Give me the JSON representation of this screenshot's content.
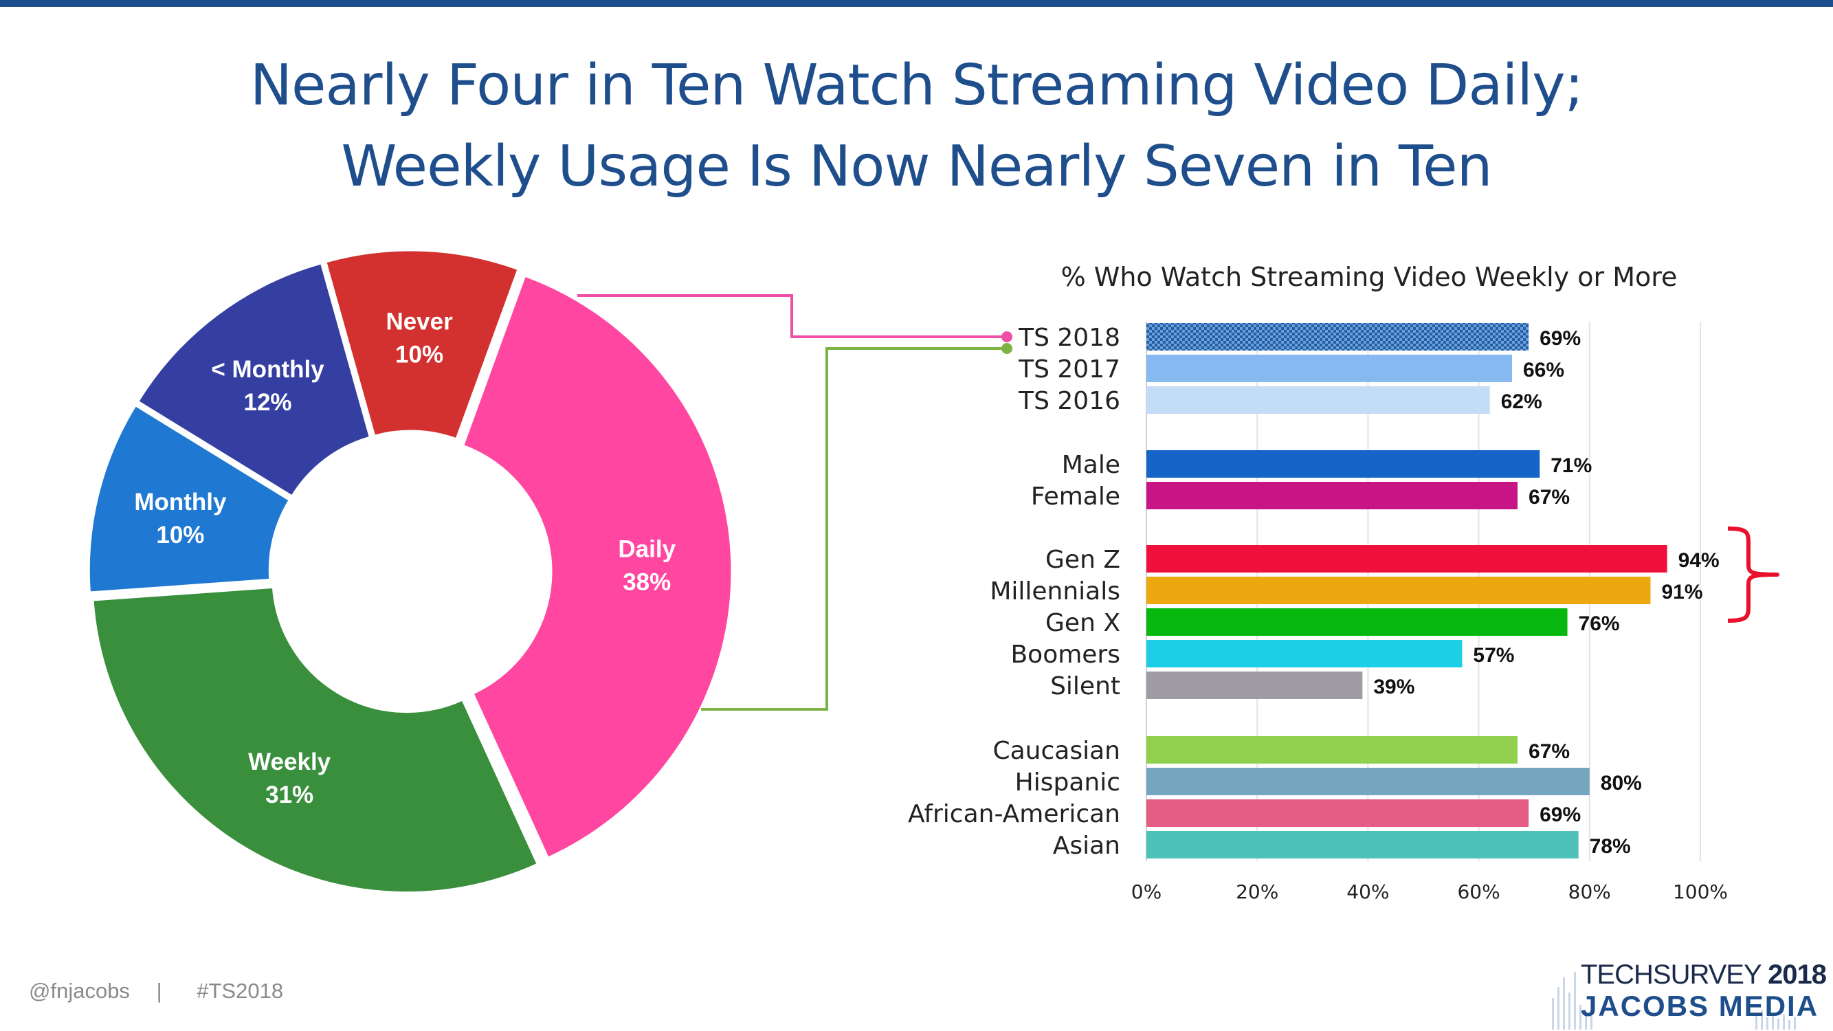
{
  "header": {
    "title_line1": "Nearly Four in Ten Watch Streaming Video Daily;",
    "title_line2": "Weekly Usage Is Now Nearly Seven in Ten"
  },
  "chart_data": [
    {
      "type": "pie",
      "variant": "donut",
      "slices": [
        {
          "name": "Daily",
          "value": 38,
          "label": "38%",
          "color": "#ff47a1"
        },
        {
          "name": "Weekly",
          "value": 31,
          "label": "31%",
          "color": "#3a8f3d"
        },
        {
          "name": "Monthly",
          "value": 10,
          "label": "10%",
          "color": "#1f78d1"
        },
        {
          "name": "< Monthly",
          "value": 12,
          "label": "12%",
          "color": "#343fa1"
        },
        {
          "name": "Never",
          "value": 10,
          "label": "10%",
          "color": "#d2312f"
        }
      ]
    },
    {
      "type": "bar",
      "orientation": "horizontal",
      "title": "% Who Watch Streaming Video Weekly or More",
      "xlim": [
        0,
        100
      ],
      "x_ticks": [
        "0%",
        "20%",
        "40%",
        "60%",
        "80%",
        "100%"
      ],
      "grid": true,
      "bars": [
        {
          "category": "TS 2018",
          "value": 69,
          "label": "69%",
          "color": "#1f5fa8",
          "pattern": "checkered"
        },
        {
          "category": "TS 2017",
          "value": 66,
          "label": "66%",
          "color": "#86b9f0"
        },
        {
          "category": "TS 2016",
          "value": 62,
          "label": "62%",
          "color": "#c3ddf7"
        },
        {
          "category": "Male",
          "value": 71,
          "label": "71%",
          "color": "#1565c8"
        },
        {
          "category": "Female",
          "value": 67,
          "label": "67%",
          "color": "#c71585"
        },
        {
          "category": "Gen Z",
          "value": 94,
          "label": "94%",
          "color": "#f0103c"
        },
        {
          "category": "Millennials",
          "value": 91,
          "label": "91%",
          "color": "#eea80f"
        },
        {
          "category": "Gen X",
          "value": 76,
          "label": "76%",
          "color": "#07b80e"
        },
        {
          "category": "Boomers",
          "value": 57,
          "label": "57%",
          "color": "#1dcfe6"
        },
        {
          "category": "Silent",
          "value": 39,
          "label": "39%",
          "color": "#a09aa3"
        },
        {
          "category": "Caucasian",
          "value": 67,
          "label": "67%",
          "color": "#92d050"
        },
        {
          "category": "Hispanic",
          "value": 80,
          "label": "80%",
          "color": "#76a5bf"
        },
        {
          "category": "African-American",
          "value": 69,
          "label": "69%",
          "color": "#e35d85"
        },
        {
          "category": "Asian",
          "value": 78,
          "label": "78%",
          "color": "#4ec1ba"
        }
      ],
      "highlight": {
        "categories": [
          "Gen Z",
          "Millennials"
        ],
        "color": "#e8102a"
      }
    }
  ],
  "footer": {
    "handle": "@fnjacobs",
    "separator": "|",
    "hashtag": "#TS2018"
  },
  "logo": {
    "line1": "TECHSURVEY",
    "year": "2018",
    "line2": "JACOBS MEDIA"
  },
  "colors": {
    "title": "#1f4e8c",
    "daily_connector": "#ef4fa6",
    "weekly_connector": "#7cb342"
  }
}
